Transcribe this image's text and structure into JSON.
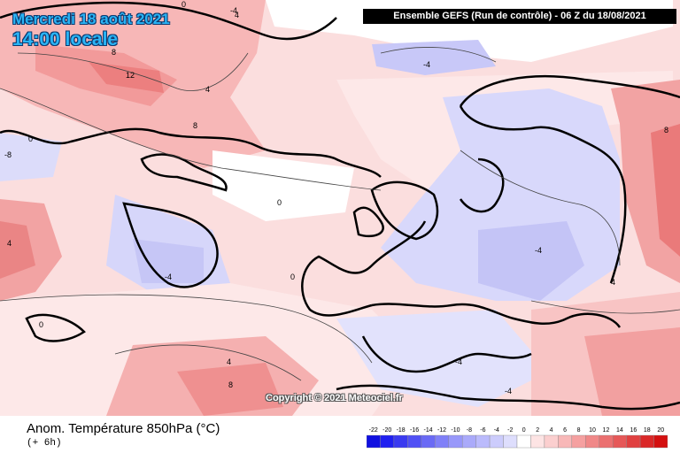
{
  "header": {
    "date_label": "Mercredi 18 août 2021",
    "time_label": "14:00 locale",
    "run_label": "Ensemble GEFS  (Run de contrôle)  -  06 Z du 18/08/2021"
  },
  "footer": {
    "variable_title": "Anom. Température 850hPa (°C)",
    "forecast_offset": "(+ 6h)",
    "copyright": "Copyright © 2021 Meteociel.fr"
  },
  "legend": {
    "values": [
      "-22",
      "-20",
      "-18",
      "-16",
      "-14",
      "-12",
      "-10",
      "-8",
      "-6",
      "-4",
      "-2",
      "0",
      "2",
      "4",
      "6",
      "8",
      "10",
      "12",
      "14",
      "16",
      "18",
      "20"
    ],
    "colors": [
      "#1010e0",
      "#2020f0",
      "#3a3af0",
      "#5050f5",
      "#6a6af5",
      "#8080f8",
      "#9898fa",
      "#aaaafa",
      "#bbbbfc",
      "#ccccfc",
      "#dedefd",
      "#ffffff",
      "#fde4e4",
      "#fbcfcf",
      "#f8b8b8",
      "#f5a0a0",
      "#f08888",
      "#eb7070",
      "#e65858",
      "#e04040",
      "#da2828",
      "#d41010"
    ]
  },
  "contour_labels": [
    "0",
    "-4",
    "4",
    "8",
    "12",
    "-8",
    "0",
    "4",
    "-4",
    "8",
    "0",
    "-4",
    "4",
    "-4",
    "8",
    "0",
    "4",
    "-4",
    "0",
    "-4",
    "4",
    "8"
  ]
}
